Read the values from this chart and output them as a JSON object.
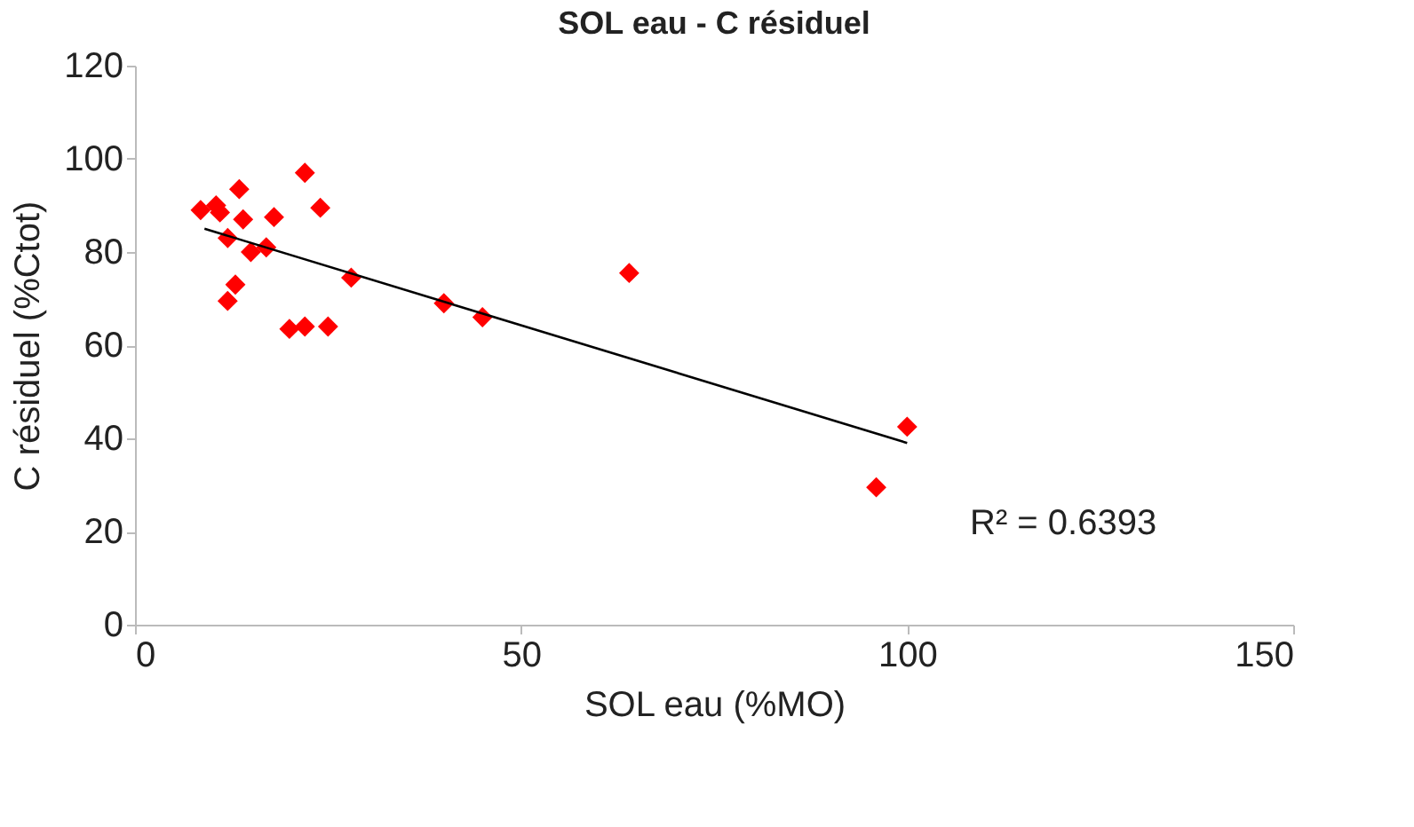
{
  "chart_data": {
    "type": "scatter",
    "title": "SOL eau - C résiduel",
    "xlabel": "SOL eau (%MO)",
    "ylabel": "C résiduel (%Ctot)",
    "xlim": [
      0,
      150
    ],
    "xticks": [
      0,
      50,
      100,
      150
    ],
    "ylim": [
      0,
      120
    ],
    "yticks": [
      0,
      20,
      40,
      60,
      80,
      100,
      120
    ],
    "grid": false,
    "annotations": [
      "R² = 0.6393"
    ],
    "series": [
      {
        "marker": "diamond",
        "color": "#ff0000",
        "x": [
          8.5,
          10.5,
          11,
          12,
          13.5,
          14,
          15,
          12,
          13,
          17,
          18,
          20,
          22,
          22,
          24,
          25,
          28,
          40,
          45,
          64,
          96,
          100
        ],
        "values": [
          89,
          90,
          88.5,
          83,
          93.5,
          87,
          80,
          69.5,
          73,
          81,
          87.5,
          63.5,
          97,
          64,
          89.5,
          64,
          74.5,
          69,
          66,
          75.5,
          29.5,
          42.5
        ]
      },
      {
        "type": "line",
        "color": "#000000",
        "x": [
          9,
          100
        ],
        "values": [
          85,
          39
        ]
      }
    ]
  }
}
